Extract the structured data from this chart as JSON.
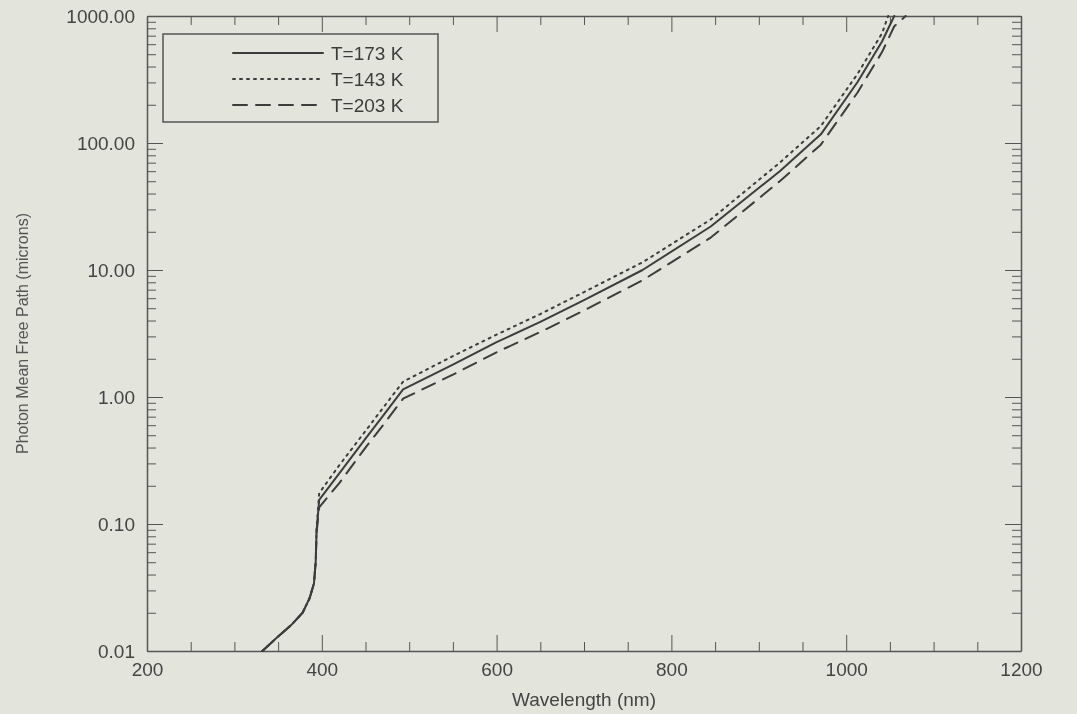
{
  "chart_data": {
    "type": "line",
    "xlabel": "Wavelength (nm)",
    "ylabel": "Photon Mean Free Path (microns)",
    "log": "y",
    "legend": "top left",
    "grid": false,
    "xlim": [
      200,
      1200
    ],
    "ylim": [
      0.01,
      1000
    ],
    "xticks": [
      200,
      {
        "value": 250,
        "label": null
      },
      {
        "value": 300,
        "label": null
      },
      {
        "value": 350,
        "label": null
      },
      400,
      {
        "value": 450,
        "label": null
      },
      {
        "value": 500,
        "label": null
      },
      {
        "value": 550,
        "label": null
      },
      600,
      {
        "value": 650,
        "label": null
      },
      {
        "value": 700,
        "label": null
      },
      {
        "value": 750,
        "label": null
      },
      800,
      {
        "value": 850,
        "label": null
      },
      {
        "value": 900,
        "label": null
      },
      {
        "value": 950,
        "label": null
      },
      1000,
      {
        "value": 1050,
        "label": null
      },
      {
        "value": 1100,
        "label": null
      },
      {
        "value": 1150,
        "label": null
      },
      1200
    ],
    "yticks": [
      0.01,
      {
        "value": 0.02,
        "label": null
      },
      {
        "value": 0.03,
        "label": null
      },
      {
        "value": 0.04,
        "label": null
      },
      {
        "value": 0.05,
        "label": null
      },
      {
        "value": 0.06,
        "label": null
      },
      {
        "value": 0.07,
        "label": null
      },
      {
        "value": 0.08,
        "label": null
      },
      {
        "value": 0.09,
        "label": null
      },
      {
        "value": 0.1,
        "label": "0.10"
      },
      {
        "value": 0.2,
        "label": null
      },
      {
        "value": 0.3,
        "label": null
      },
      {
        "value": 0.4,
        "label": null
      },
      {
        "value": 0.5,
        "label": null
      },
      {
        "value": 0.6,
        "label": null
      },
      {
        "value": 0.7,
        "label": null
      },
      {
        "value": 0.8,
        "label": null
      },
      {
        "value": 0.9,
        "label": null
      },
      {
        "value": 1,
        "label": "1.00"
      },
      {
        "value": 2,
        "label": null
      },
      {
        "value": 3,
        "label": null
      },
      {
        "value": 4,
        "label": null
      },
      {
        "value": 5,
        "label": null
      },
      {
        "value": 6,
        "label": null
      },
      {
        "value": 7,
        "label": null
      },
      {
        "value": 8,
        "label": null
      },
      {
        "value": 9,
        "label": null
      },
      {
        "value": 10,
        "label": "10.00"
      },
      {
        "value": 20,
        "label": null
      },
      {
        "value": 30,
        "label": null
      },
      {
        "value": 40,
        "label": null
      },
      {
        "value": 50,
        "label": null
      },
      {
        "value": 60,
        "label": null
      },
      {
        "value": 70,
        "label": null
      },
      {
        "value": 80,
        "label": null
      },
      {
        "value": 90,
        "label": null
      },
      {
        "value": 100,
        "label": "100.00"
      },
      {
        "value": 200,
        "label": null
      },
      {
        "value": 300,
        "label": null
      },
      {
        "value": 400,
        "label": null
      },
      {
        "value": 500,
        "label": null
      },
      {
        "value": 600,
        "label": null
      },
      {
        "value": 700,
        "label": null
      },
      {
        "value": 800,
        "label": null
      },
      {
        "value": 900,
        "label": null
      },
      {
        "value": 1000,
        "label": "1000.00"
      }
    ],
    "series": [
      {
        "name": "T=173 K",
        "color": "#3c3c3c",
        "line_style": "solid",
        "x": [
          332,
          350,
          365,
          378,
          386,
          391,
          393,
          394,
          397,
          420,
          450,
          470,
          493,
          550,
          600,
          650,
          700,
          767,
          845,
          924,
          971,
          1013,
          1041,
          1055
        ],
        "values": [
          0.01,
          0.013,
          0.016,
          0.02,
          0.026,
          0.034,
          0.05,
          0.087,
          0.155,
          0.25,
          0.47,
          0.71,
          1.15,
          1.8,
          2.7,
          3.9,
          5.8,
          10,
          22,
          60,
          117,
          302,
          630,
          1000
        ]
      },
      {
        "name": "T=143 K",
        "color": "#3c3c3c",
        "line_style": "dotted",
        "x": [
          332,
          350,
          365,
          378,
          386,
          391,
          393,
          394,
          397,
          420,
          450,
          470,
          493,
          550,
          600,
          650,
          700,
          767,
          845,
          924,
          971,
          1013,
          1041,
          1048
        ],
        "values": [
          0.01,
          0.013,
          0.016,
          0.02,
          0.026,
          0.034,
          0.05,
          0.09,
          0.175,
          0.29,
          0.54,
          0.82,
          1.32,
          2.1,
          3.1,
          4.5,
          6.7,
          11.5,
          25,
          70,
          136,
          350,
          730,
          1000
        ]
      },
      {
        "name": "T=203 K",
        "color": "#3c3c3c",
        "line_style": "dashed",
        "x": [
          332,
          350,
          365,
          378,
          386,
          391,
          393,
          394,
          397,
          420,
          450,
          470,
          493,
          550,
          600,
          650,
          700,
          767,
          845,
          924,
          971,
          1013,
          1041,
          1055,
          1068
        ],
        "values": [
          0.01,
          0.013,
          0.016,
          0.02,
          0.026,
          0.034,
          0.05,
          0.085,
          0.135,
          0.21,
          0.4,
          0.6,
          0.97,
          1.5,
          2.25,
          3.25,
          4.8,
          8.3,
          18,
          50,
          97,
          250,
          520,
          830,
          1000
        ]
      }
    ]
  }
}
